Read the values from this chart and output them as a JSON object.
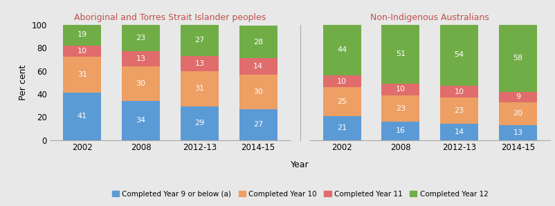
{
  "groups": [
    "Aboriginal and Torres Strait Islander peoples",
    "Non-Indigenous Australians"
  ],
  "years": [
    "2002",
    "2008",
    "2012-13",
    "2014-15"
  ],
  "indigenous_data": {
    "year9_below": [
      41,
      34,
      29,
      27
    ],
    "year10": [
      31,
      30,
      31,
      30
    ],
    "year11": [
      10,
      13,
      13,
      14
    ],
    "year12": [
      19,
      23,
      27,
      28
    ]
  },
  "non_indigenous_data": {
    "year9_below": [
      21,
      16,
      14,
      13
    ],
    "year10": [
      25,
      23,
      23,
      20
    ],
    "year11": [
      10,
      10,
      10,
      9
    ],
    "year12": [
      44,
      51,
      54,
      58
    ]
  },
  "colors": {
    "year9_below": "#5b9bd5",
    "year10": "#ed9f64",
    "year11": "#e06c6c",
    "year12": "#70ad47"
  },
  "legend_labels": [
    "Completed Year 9 or below (a)",
    "Completed Year 10",
    "Completed Year 11",
    "Completed Year 12"
  ],
  "title_indigenous": "Aboriginal and Torres Strait Islander peoples",
  "title_non_indigenous": "Non-Indigenous Australians",
  "title_color": "#c0504d",
  "xlabel": "Year",
  "ylabel": "Per cent",
  "ylim": [
    0,
    100
  ],
  "bg_color": "#e8e8e8",
  "bar_width": 0.65,
  "text_color": "white",
  "text_fontsize": 8
}
